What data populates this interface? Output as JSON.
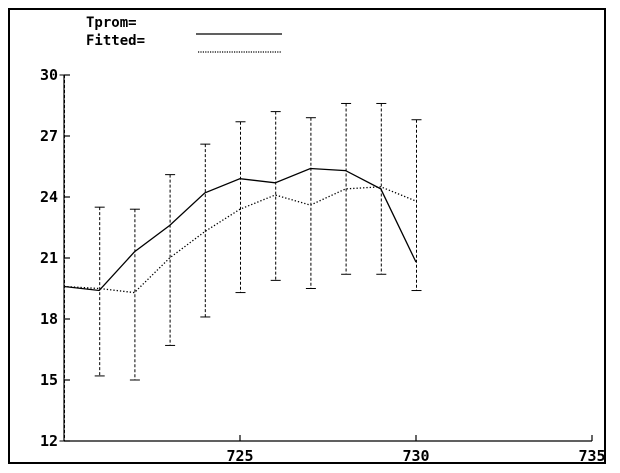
{
  "chart_data": {
    "type": "line",
    "x": [
      720,
      721,
      722,
      723,
      724,
      725,
      726,
      727,
      728,
      729,
      730
    ],
    "series": [
      {
        "name": "Tprom",
        "style": "solid",
        "values": [
          19.6,
          19.4,
          21.3,
          22.6,
          24.2,
          24.9,
          24.7,
          25.4,
          25.3,
          24.4,
          20.8
        ]
      },
      {
        "name": "Fitted",
        "style": "dotted",
        "values": [
          19.6,
          19.5,
          19.3,
          21.0,
          22.3,
          23.4,
          24.1,
          23.6,
          24.4,
          24.5,
          23.8
        ]
      }
    ],
    "error_bars": {
      "lower": [
        12.0,
        15.2,
        15.0,
        16.7,
        18.1,
        19.3,
        19.9,
        19.5,
        20.2,
        20.2,
        19.4
      ],
      "upper": [
        30.0,
        23.5,
        23.4,
        25.1,
        26.6,
        27.7,
        28.2,
        27.9,
        28.6,
        28.6,
        27.8
      ]
    },
    "x_ticks": [
      725,
      730,
      735
    ],
    "y_ticks": [
      12,
      15,
      18,
      21,
      24,
      27,
      30
    ],
    "xlim": [
      720,
      735
    ],
    "ylim": [
      12,
      30
    ],
    "legend": {
      "placement": "top-left",
      "labels": [
        "Tprom=",
        "Fitted="
      ]
    },
    "grid": false
  },
  "colors": {
    "background": "#ffffff",
    "ink": "#000000"
  }
}
